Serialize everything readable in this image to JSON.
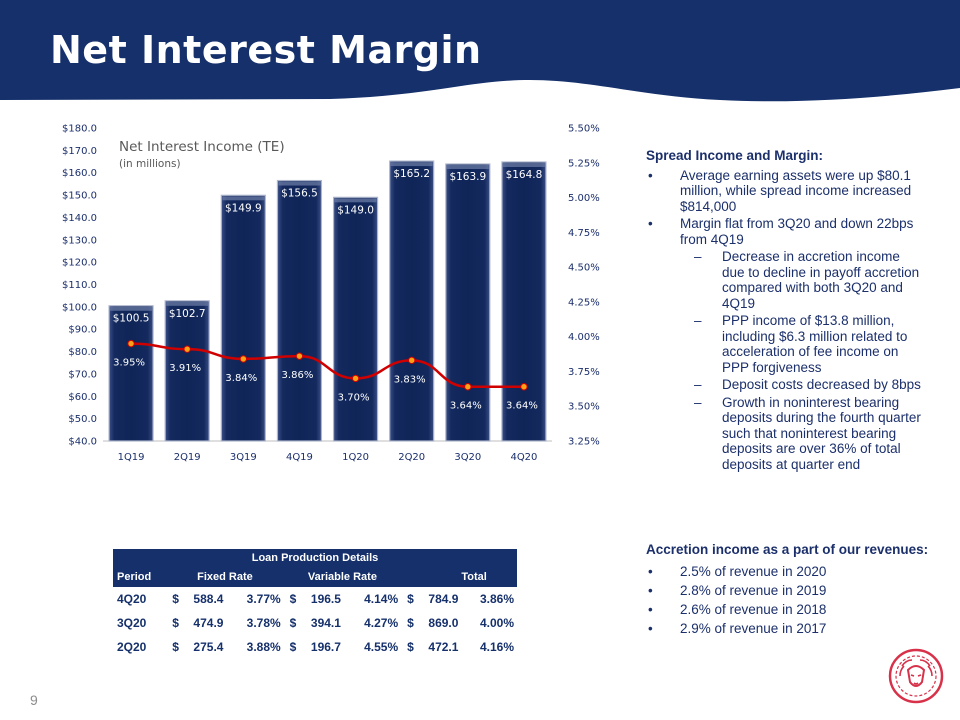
{
  "page": {
    "title": "Net Interest Margin",
    "page_number": "9"
  },
  "colors": {
    "navy": "#15306b",
    "line_red": "#d10000",
    "marker_orange": "#f6a318",
    "text_navy": "#1b2f6b",
    "logo_red": "#d8314a"
  },
  "chart_data": {
    "type": "bar",
    "title": "Net Interest Income (TE)",
    "subtitle": "(in millions)",
    "categories": [
      "1Q19",
      "2Q19",
      "3Q19",
      "4Q19",
      "1Q20",
      "2Q20",
      "3Q20",
      "4Q20"
    ],
    "series": [
      {
        "type": "bar",
        "axis": "left",
        "values": [
          100.5,
          102.7,
          149.9,
          156.5,
          149.0,
          165.2,
          163.9,
          164.8
        ],
        "labels": [
          "$100.5",
          "$102.7",
          "$149.9",
          "$156.5",
          "$149.0",
          "$165.2",
          "$163.9",
          "$164.8"
        ]
      },
      {
        "type": "line",
        "axis": "right",
        "values": [
          3.95,
          3.91,
          3.84,
          3.86,
          3.7,
          3.83,
          3.64,
          3.64
        ],
        "labels": [
          "3.95%",
          "3.91%",
          "3.84%",
          "3.86%",
          "3.70%",
          "3.83%",
          "3.64%",
          "3.64%"
        ]
      }
    ],
    "y_left": {
      "min": 40,
      "max": 180,
      "step": 10,
      "ticks": [
        "$180.0",
        "$170.0",
        "$160.0",
        "$150.0",
        "$140.0",
        "$130.0",
        "$120.0",
        "$110.0",
        "$100.0",
        "$90.0",
        "$80.0",
        "$70.0",
        "$60.0",
        "$50.0",
        "$40.0"
      ]
    },
    "y_right": {
      "min": 3.25,
      "max": 5.5,
      "step": 0.25,
      "ticks": [
        "5.50%",
        "5.25%",
        "5.00%",
        "4.75%",
        "4.50%",
        "4.25%",
        "4.00%",
        "3.75%",
        "3.50%",
        "3.25%"
      ]
    },
    "grid": false
  },
  "spread": {
    "title": "Spread Income and Margin:",
    "b1": "Average earning assets were up $80.1 million, while spread income increased $814,000",
    "b2": "Margin flat from 3Q20 and down 22bps from 4Q19",
    "s1": "Decrease in accretion income due to decline in payoff accretion compared with both 3Q20 and 4Q19",
    "s2": "PPP income of $13.8 million, including $6.3 million related to acceleration of fee income on PPP forgiveness",
    "s3": "Deposit costs decreased by 8bps",
    "s4": "Growth in noninterest bearing deposits during the fourth quarter such that noninterest bearing deposits are over 36% of total deposits at quarter end"
  },
  "accretion": {
    "title": "Accretion income as a part of our revenues:",
    "b1": "2.5% of revenue in 2020",
    "b2": "2.8% of revenue in 2019",
    "b3": "2.6% of revenue in 2018",
    "b4": "2.9% of revenue in 2017"
  },
  "loan_table": {
    "caption": "Loan Production Details",
    "h_period": "Period",
    "h_fixed": "Fixed Rate",
    "h_variable": "Variable Rate",
    "h_total": "Total",
    "rows": [
      {
        "period": "4Q20",
        "fixed_amt": "588.4",
        "fixed_rate": "3.77%",
        "var_amt": "196.5",
        "var_rate": "4.14%",
        "total_amt": "784.9",
        "total_rate": "3.86%"
      },
      {
        "period": "3Q20",
        "fixed_amt": "474.9",
        "fixed_rate": "3.78%",
        "var_amt": "394.1",
        "var_rate": "4.27%",
        "total_amt": "869.0",
        "total_rate": "4.00%"
      },
      {
        "period": "2Q20",
        "fixed_amt": "275.4",
        "fixed_rate": "3.88%",
        "var_amt": "196.7",
        "var_rate": "4.55%",
        "total_amt": "472.1",
        "total_rate": "4.16%"
      }
    ],
    "currency": "$"
  }
}
